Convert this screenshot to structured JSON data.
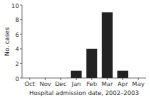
{
  "chart_data": {
    "type": "bar",
    "categories": [
      "Oct",
      "Nov",
      "Dec",
      "Jan",
      "Feb",
      "Mar",
      "Apr",
      "May"
    ],
    "values": [
      0,
      0,
      0,
      1,
      4,
      9,
      1,
      0
    ],
    "color": "#222222",
    "xlabel": "Hospital admission date, 2002–2003",
    "ylabel": "No. cases",
    "ylim": [
      0,
      10
    ],
    "yticks": [
      0,
      2,
      4,
      6,
      8,
      10
    ],
    "grid": false
  }
}
